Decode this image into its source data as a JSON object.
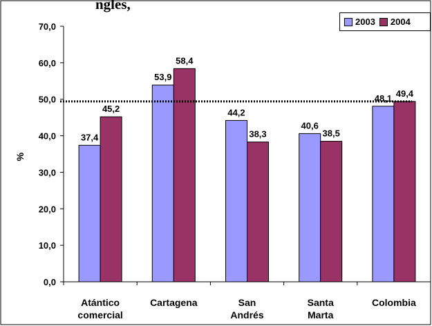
{
  "title_fragment": "ngles, ",
  "colors": {
    "series_2003": "#9999ff",
    "series_2004": "#993366",
    "reference_line": "#000000"
  },
  "chart_data": {
    "type": "bar",
    "title": "",
    "xlabel": "",
    "ylabel": "%",
    "ylim": [
      0,
      70
    ],
    "yticks": [
      "0,0",
      "10,0",
      "20,0",
      "30,0",
      "40,0",
      "50,0",
      "60,0",
      "70,0"
    ],
    "categories": [
      [
        "Atántico",
        "comercial"
      ],
      [
        "Cartagena"
      ],
      [
        "San",
        "Andrés"
      ],
      [
        "Santa",
        "Marta"
      ],
      [
        "Colombia"
      ]
    ],
    "series": [
      {
        "name": "2003",
        "values": [
          37.4,
          53.9,
          44.2,
          40.6,
          48.1
        ],
        "labels": [
          "37,4",
          "53,9",
          "44,2",
          "40,6",
          "48,1"
        ]
      },
      {
        "name": "2004",
        "values": [
          45.2,
          58.4,
          38.3,
          38.5,
          49.4
        ],
        "labels": [
          "45,2",
          "58,4",
          "38,3",
          "38,5",
          "49,4"
        ]
      }
    ],
    "reference_line": {
      "value": 49.4,
      "style": "dotted"
    },
    "legend_position": "top-right",
    "grid": false
  }
}
